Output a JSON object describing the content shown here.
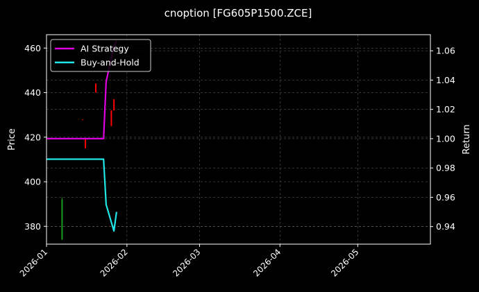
{
  "chart_data": {
    "type": "line",
    "title": "cnoption [FG605P1500.ZCE]",
    "xlabel": "",
    "ylabel": "Price",
    "ylabel_right": "Return",
    "x_range": [
      "2026-01-01",
      "2026-05-29"
    ],
    "ylim": [
      372,
      466
    ],
    "ylim_right": [
      0.928,
      1.071
    ],
    "x_ticks": [
      "2026-01",
      "2026-02",
      "2026-03",
      "2026-04",
      "2026-05"
    ],
    "y_ticks": [
      380,
      400,
      420,
      440,
      460
    ],
    "y_ticks_right": [
      0.94,
      0.96,
      0.98,
      1.0,
      1.02,
      1.04,
      1.06
    ],
    "grid": true,
    "legend_position": "top-left",
    "candles": [
      {
        "date": "2026-01-07",
        "open": 374,
        "close": 392,
        "high": 393,
        "low": 374,
        "color": "#1a9a1a"
      },
      {
        "date": "2026-01-15",
        "open": 428,
        "close": 428,
        "high": 428,
        "low": 428,
        "color": "#ff0000"
      },
      {
        "date": "2026-01-16",
        "open": 415,
        "close": 419,
        "high": 419,
        "low": 415,
        "color": "#ff0000"
      },
      {
        "date": "2026-01-20",
        "open": 440,
        "close": 444,
        "high": 444,
        "low": 440,
        "color": "#ff0000"
      },
      {
        "date": "2026-01-26",
        "open": 425,
        "close": 432,
        "high": 432,
        "low": 425,
        "color": "#ff0000"
      },
      {
        "date": "2026-01-27",
        "open": 432,
        "close": 437,
        "high": 437,
        "low": 432,
        "color": "#ff0000"
      }
    ],
    "series": [
      {
        "name": "AI Strategy",
        "color": "#e000e0",
        "axis": "right",
        "points": [
          {
            "x": "2026-01-01",
            "y": 1.0
          },
          {
            "x": "2026-01-23",
            "y": 1.0
          },
          {
            "x": "2026-01-24",
            "y": 1.039
          },
          {
            "x": "2026-01-27",
            "y": 1.063
          },
          {
            "x": "2026-01-28",
            "y": 1.067
          }
        ]
      },
      {
        "name": "Buy-and-Hold",
        "color": "#20e8e8",
        "axis": "right",
        "points": [
          {
            "x": "2026-01-01",
            "y": 0.986
          },
          {
            "x": "2026-01-23",
            "y": 0.986
          },
          {
            "x": "2026-01-24",
            "y": 0.955
          },
          {
            "x": "2026-01-27",
            "y": 0.937
          },
          {
            "x": "2026-01-28",
            "y": 0.95
          }
        ]
      }
    ]
  }
}
